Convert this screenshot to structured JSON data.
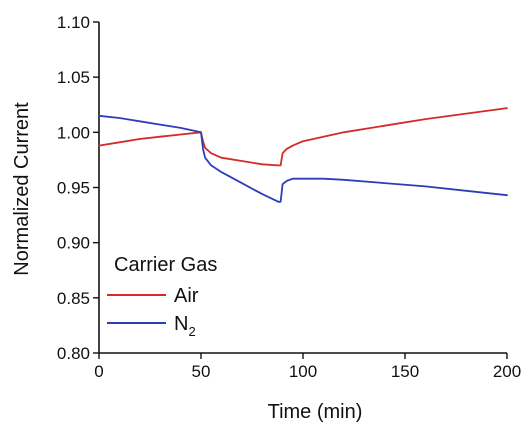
{
  "chart_data": {
    "type": "line",
    "xlabel": "Time (min)",
    "ylabel": "Normalized Current",
    "xlim": [
      0,
      200
    ],
    "ylim": [
      0.8,
      1.1
    ],
    "xticks": [
      0,
      50,
      100,
      150,
      200
    ],
    "xtick_labels": [
      "0",
      "50",
      "100",
      "150",
      "200"
    ],
    "yticks": [
      0.8,
      0.85,
      0.9,
      0.95,
      1.0,
      1.05,
      1.1
    ],
    "ytick_labels": [
      "0.80",
      "0.85",
      "0.90",
      "0.95",
      "1.00",
      "1.05",
      "1.10"
    ],
    "grid": false,
    "legend": {
      "title": "Carrier Gas",
      "placement": "bottom-left"
    },
    "series": [
      {
        "name": "Air",
        "name_base": "Air",
        "name_sub": "",
        "color": "#d42a2a",
        "x": [
          0,
          10,
          20,
          30,
          40,
          50,
          51,
          52,
          55,
          60,
          70,
          80,
          88,
          89,
          90,
          92,
          95,
          100,
          110,
          120,
          140,
          160,
          180,
          200
        ],
        "y": [
          0.988,
          0.991,
          0.994,
          0.996,
          0.998,
          1.0,
          0.992,
          0.986,
          0.981,
          0.977,
          0.974,
          0.971,
          0.97,
          0.97,
          0.981,
          0.985,
          0.988,
          0.992,
          0.996,
          1.0,
          1.006,
          1.012,
          1.017,
          1.022
        ]
      },
      {
        "name": "N2",
        "name_base": "N",
        "name_sub": "2",
        "color": "#2d3db8",
        "x": [
          0,
          10,
          20,
          30,
          40,
          50,
          51,
          52,
          55,
          60,
          70,
          80,
          88,
          89,
          90,
          92,
          95,
          100,
          110,
          120,
          140,
          160,
          180,
          200
        ],
        "y": [
          1.015,
          1.013,
          1.01,
          1.007,
          1.004,
          1.0,
          0.985,
          0.977,
          0.97,
          0.964,
          0.954,
          0.944,
          0.937,
          0.937,
          0.953,
          0.956,
          0.958,
          0.958,
          0.958,
          0.957,
          0.954,
          0.951,
          0.947,
          0.943
        ]
      }
    ]
  }
}
